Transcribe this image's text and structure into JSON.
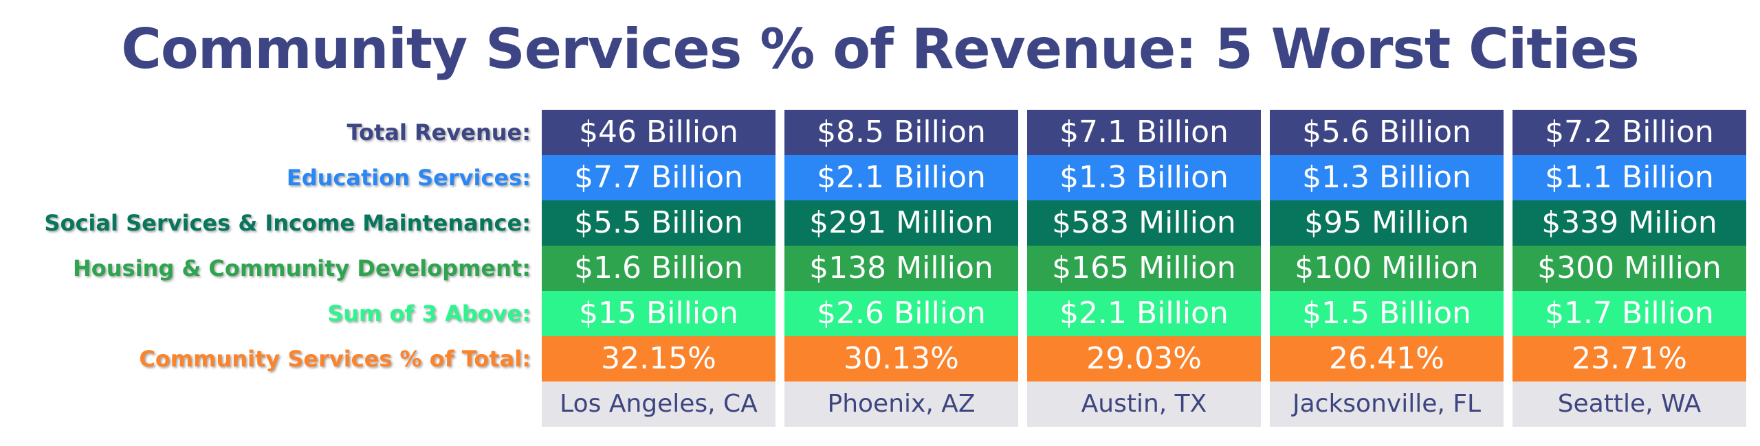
{
  "chart_data": {
    "type": "table",
    "title": "Community Services % of Revenue: 5 Worst Cities",
    "rows": [
      {
        "key": "total",
        "label": "Total Revenue:",
        "color": "#3d4585",
        "label_color": "#3d4585"
      },
      {
        "key": "education",
        "label": "Education Services:",
        "color": "#2b87f5",
        "label_color": "#2b87f5"
      },
      {
        "key": "social",
        "label": "Social Services & Income Maintenance:",
        "color": "#07765c",
        "label_color": "#07765c"
      },
      {
        "key": "housing",
        "label": "Housing & Community Development:",
        "color": "#2ea44f",
        "label_color": "#2ea44f"
      },
      {
        "key": "sum",
        "label": "Sum of 3 Above:",
        "color": "#2df58e",
        "label_color": "#2df58e"
      },
      {
        "key": "pct",
        "label": "Community Services % of Total:",
        "color": "#fb832c",
        "label_color": "#fb832c"
      },
      {
        "key": "city",
        "label": "",
        "color": "#e5e4e8",
        "label_color": "#3d4580"
      }
    ],
    "columns": [
      {
        "city": "Los Angeles, CA",
        "total": "$46 Billion",
        "education": "$7.7 Billion",
        "social": "$5.5 Billion",
        "housing": "$1.6 Billion",
        "sum": "$15 Billion",
        "pct": "32.15%"
      },
      {
        "city": "Phoenix, AZ",
        "total": "$8.5 Billion",
        "education": "$2.1 Billion",
        "social": "$291 Million",
        "housing": "$138 Million",
        "sum": "$2.6 Billion",
        "pct": "30.13%"
      },
      {
        "city": "Austin, TX",
        "total": "$7.1 Billion",
        "education": "$1.3 Billion",
        "social": "$583 Million",
        "housing": "$165 Million",
        "sum": "$2.1 Billion",
        "pct": "29.03%"
      },
      {
        "city": "Jacksonville, FL",
        "total": "$5.6 Billion",
        "education": "$1.3 Billion",
        "social": "$95 Million",
        "housing": "$100 Million",
        "sum": "$1.5 Billion",
        "pct": "26.41%"
      },
      {
        "city": "Seattle, WA",
        "total": "$7.2 Billion",
        "education": "$1.1 Billion",
        "social": "$339 Milion",
        "housing": "$300 Million",
        "sum": "$1.7 Billion",
        "pct": "23.71%"
      }
    ],
    "title_color": "#3d4585"
  }
}
